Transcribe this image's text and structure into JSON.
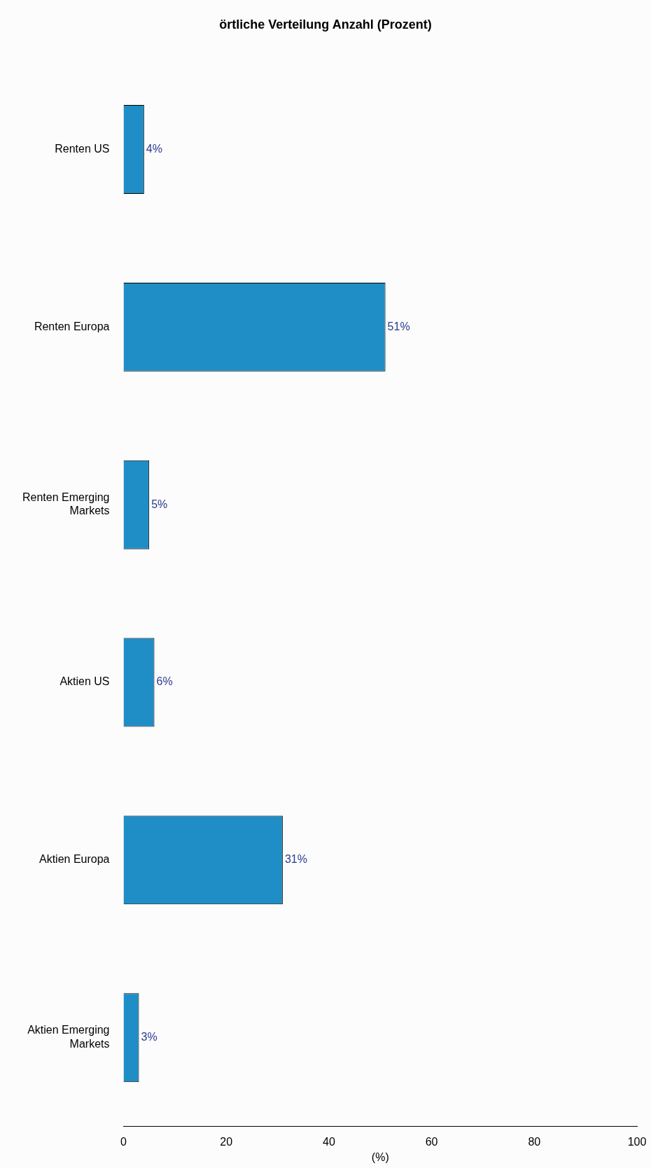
{
  "chart_data": {
    "type": "bar",
    "orientation": "horizontal",
    "title": "örtliche Verteilung Anzahl (Prozent)",
    "xlabel": "(%)",
    "categories": [
      "Renten US",
      "Renten Europa",
      "Renten Emerging Markets",
      "Aktien US",
      "Aktien Europa",
      "Aktien Emerging Markets"
    ],
    "values": [
      4,
      51,
      5,
      6,
      31,
      3
    ],
    "value_labels": [
      "4%",
      "51%",
      "5%",
      "6%",
      "31%",
      "3%"
    ],
    "color": "#1f8ec6",
    "xlim": [
      0,
      100
    ],
    "xticks": [
      0,
      20,
      40,
      60,
      80,
      100
    ],
    "grid": false,
    "legend": false
  }
}
